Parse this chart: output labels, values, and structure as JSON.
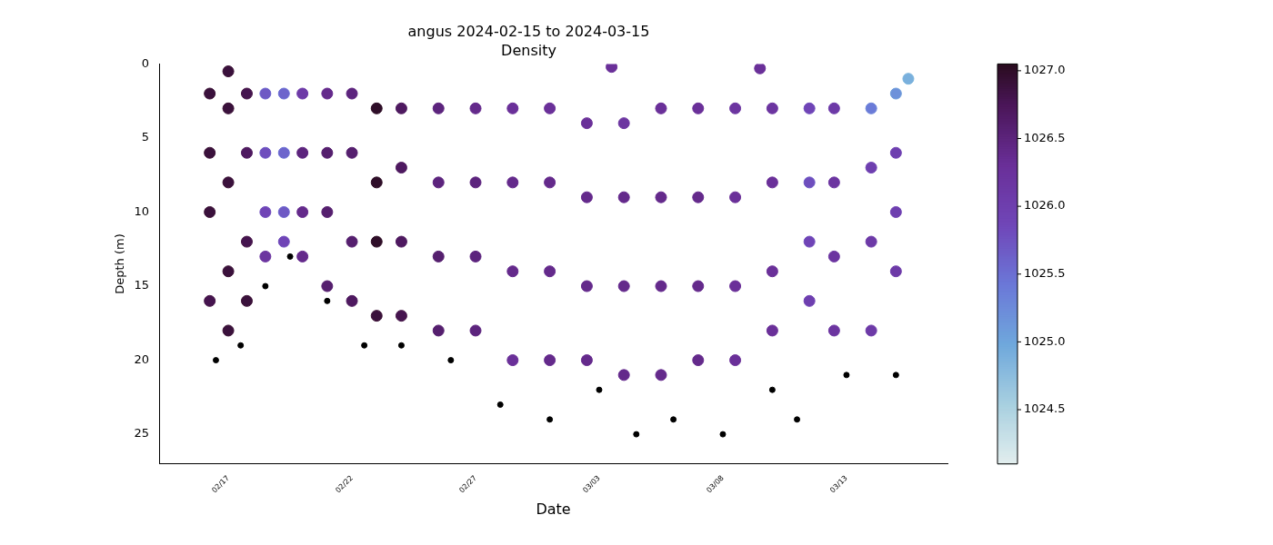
{
  "chart_data": {
    "type": "scatter",
    "title": "angus 2024-02-15 to 2024-03-15",
    "subtitle": "Density",
    "xlabel": "Date",
    "ylabel": "Depth (m)",
    "xlim": [
      "2024-02-14T05:00",
      "2024-03-17T02:00"
    ],
    "xticks": [
      {
        "value": "2024-02-17",
        "label": "02/17"
      },
      {
        "value": "2024-02-22",
        "label": "02/22"
      },
      {
        "value": "2024-02-27",
        "label": "02/27"
      },
      {
        "value": "2024-03-03",
        "label": "03/03"
      },
      {
        "value": "2024-03-08",
        "label": "03/08"
      },
      {
        "value": "2024-03-13",
        "label": "03/13"
      }
    ],
    "ylim": [
      27,
      0
    ],
    "yticks": [
      0,
      5,
      10,
      15,
      20,
      25
    ],
    "clim": [
      1024.1,
      1027.05
    ],
    "cticks": [
      {
        "value": 1024.5,
        "label": "1024.5"
      },
      {
        "value": 1025,
        "label": "1025.0"
      },
      {
        "value": 1025.5,
        "label": "1025.5"
      },
      {
        "value": 1026,
        "label": "1026.0"
      },
      {
        "value": 1026.5,
        "label": "1026.5"
      },
      {
        "value": 1027,
        "label": "1027.0"
      }
    ],
    "grid": false,
    "legend": false,
    "marker": "circle",
    "series": [
      {
        "color": "#000000",
        "x": [
          "2024-02-16T12:00",
          "2024-02-17T12:00",
          "2024-02-18T12:00",
          "2024-02-19T12:00",
          "2024-02-21T00:00",
          "2024-02-22T12:00",
          "2024-02-24T00:00",
          "2024-02-26T00:00",
          "2024-02-28T00:00",
          "2024-03-01T00:00",
          "2024-03-03T00:00",
          "2024-03-04T12:00",
          "2024-03-06T00:00",
          "2024-03-08T00:00",
          "2024-03-10T00:00",
          "2024-03-11T00:00",
          "2024-03-13T00:00",
          "2024-03-15T00:00"
        ],
        "values": [
          20,
          19,
          15,
          13,
          16,
          19,
          19,
          20,
          23,
          24,
          22,
          25,
          24,
          25,
          22,
          24,
          21,
          21
        ]
      },
      {
        "x": [
          "2024-02-16T06:00",
          "2024-02-16T06:00",
          "2024-02-16T06:00",
          "2024-02-16T06:00",
          "2024-02-17T00:00",
          "2024-02-17T00:00",
          "2024-02-17T00:00",
          "2024-02-17T00:00",
          "2024-02-17T18:00",
          "2024-02-17T18:00",
          "2024-02-17T18:00",
          "2024-02-17T18:00",
          "2024-02-18T12:00",
          "2024-02-18T12:00",
          "2024-02-18T12:00",
          "2024-02-18T12:00",
          "2024-02-19T06:00",
          "2024-02-19T06:00",
          "2024-02-19T06:00",
          "2024-02-19T06:00",
          "2024-02-20T00:00",
          "2024-02-20T00:00",
          "2024-02-20T00:00",
          "2024-02-20T00:00",
          "2024-02-21T00:00",
          "2024-02-21T00:00",
          "2024-02-21T00:00",
          "2024-02-21T00:00",
          "2024-02-22T00:00",
          "2024-02-22T00:00",
          "2024-02-22T00:00",
          "2024-02-22T00:00",
          "2024-02-23T00:00",
          "2024-02-23T00:00",
          "2024-02-23T00:00",
          "2024-02-23T00:00",
          "2024-02-24T00:00",
          "2024-02-24T00:00",
          "2024-02-24T00:00",
          "2024-02-24T00:00",
          "2024-02-25T12:00",
          "2024-02-25T12:00",
          "2024-02-25T12:00",
          "2024-02-25T12:00",
          "2024-02-27T00:00",
          "2024-02-27T00:00",
          "2024-02-27T00:00",
          "2024-02-27T00:00",
          "2024-02-28T12:00",
          "2024-02-28T12:00",
          "2024-02-28T12:00",
          "2024-02-28T12:00",
          "2024-03-01T00:00",
          "2024-03-01T00:00",
          "2024-03-01T00:00",
          "2024-03-01T00:00",
          "2024-03-02T12:00",
          "2024-03-02T12:00",
          "2024-03-02T12:00",
          "2024-03-02T12:00",
          "2024-03-04T00:00",
          "2024-03-04T00:00",
          "2024-03-04T00:00",
          "2024-03-04T00:00",
          "2024-03-05T12:00",
          "2024-03-05T12:00",
          "2024-03-05T12:00",
          "2024-03-05T12:00",
          "2024-03-07T00:00",
          "2024-03-07T00:00",
          "2024-03-07T00:00",
          "2024-03-07T00:00",
          "2024-03-08T12:00",
          "2024-03-08T12:00",
          "2024-03-08T12:00",
          "2024-03-08T12:00",
          "2024-03-10T00:00",
          "2024-03-10T00:00",
          "2024-03-10T00:00",
          "2024-03-10T00:00",
          "2024-03-11T12:00",
          "2024-03-11T12:00",
          "2024-03-11T12:00",
          "2024-03-11T12:00",
          "2024-03-12T12:00",
          "2024-03-12T12:00",
          "2024-03-12T12:00",
          "2024-03-12T12:00",
          "2024-03-14T00:00",
          "2024-03-14T00:00",
          "2024-03-14T00:00",
          "2024-03-14T00:00",
          "2024-03-15T00:00",
          "2024-03-15T00:00",
          "2024-03-15T00:00",
          "2024-03-15T00:00",
          "2024-02-17T00:00",
          "2024-03-03T12:00",
          "2024-03-09T12:00",
          "2024-03-15T12:00"
        ],
        "values": [
          2,
          6,
          10,
          16,
          3,
          8,
          14,
          18,
          2,
          6,
          12,
          16,
          2,
          6,
          10,
          13,
          2,
          6,
          10,
          12,
          2,
          6,
          10,
          13,
          2,
          6,
          10,
          15,
          2,
          6,
          12,
          16,
          3,
          8,
          12,
          17,
          3,
          7,
          12,
          17,
          3,
          8,
          13,
          18,
          3,
          8,
          13,
          18,
          3,
          8,
          14,
          20,
          3,
          8,
          14,
          20,
          4,
          9,
          15,
          20,
          4,
          9,
          15,
          21,
          3,
          9,
          15,
          21,
          3,
          9,
          15,
          20,
          3,
          9,
          15,
          20,
          3,
          8,
          14,
          18,
          3,
          8,
          12,
          16,
          3,
          8,
          13,
          18,
          3,
          7,
          12,
          18,
          2,
          6,
          10,
          14,
          0.5,
          0.2,
          0.3,
          1
        ],
        "cvalues": [
          1026.9,
          1026.9,
          1026.9,
          1026.8,
          1026.9,
          1026.9,
          1026.9,
          1026.9,
          1026.8,
          1026.7,
          1026.8,
          1026.9,
          1025.7,
          1025.8,
          1025.9,
          1026.2,
          1025.6,
          1025.6,
          1025.7,
          1025.9,
          1026.1,
          1026.5,
          1026.4,
          1026.4,
          1026.4,
          1026.6,
          1026.6,
          1026.6,
          1026.5,
          1026.6,
          1026.6,
          1026.7,
          1027.0,
          1027.0,
          1027.0,
          1026.9,
          1026.7,
          1026.7,
          1026.7,
          1026.8,
          1026.5,
          1026.5,
          1026.6,
          1026.6,
          1026.4,
          1026.5,
          1026.5,
          1026.5,
          1026.3,
          1026.4,
          1026.4,
          1026.3,
          1026.3,
          1026.4,
          1026.4,
          1026.4,
          1026.3,
          1026.4,
          1026.4,
          1026.4,
          1026.2,
          1026.4,
          1026.4,
          1026.4,
          1026.3,
          1026.4,
          1026.4,
          1026.4,
          1026.3,
          1026.4,
          1026.4,
          1026.4,
          1026.2,
          1026.3,
          1026.3,
          1026.3,
          1026.2,
          1026.3,
          1026.3,
          1026.3,
          1025.9,
          1025.8,
          1025.9,
          1026.0,
          1026.1,
          1026.2,
          1026.2,
          1026.2,
          1025.4,
          1026.0,
          1026.1,
          1026.1,
          1025.2,
          1026.0,
          1026.0,
          1026.1,
          1026.9,
          1026.3,
          1026.3,
          1024.9
        ],
        "colors": [
          "#3b1035",
          "#3b1035",
          "#3b1035",
          "#451446",
          "#3b1035",
          "#3b1035",
          "#3b1035",
          "#3b1035",
          "#451446",
          "#4e1a5e",
          "#451446",
          "#3b1035",
          "#6c64ce",
          "#6d58c6",
          "#6f4cbd",
          "#6c35a2",
          "#6b6fd5",
          "#6b6fd5",
          "#6c64ce",
          "#6f4cbd",
          "#6e3bab",
          "#5e2480",
          "#65298e",
          "#65298e",
          "#65298e",
          "#561f70",
          "#561f70",
          "#561f70",
          "#5e2480",
          "#561f70",
          "#561f70",
          "#4e1a5e",
          "#2e0d25",
          "#2e0d25",
          "#2e0d25",
          "#3b1035",
          "#4e1a5e",
          "#4e1a5e",
          "#4e1a5e",
          "#451446",
          "#5e2480",
          "#5e2480",
          "#561f70",
          "#561f70",
          "#65298e",
          "#5e2480",
          "#5e2480",
          "#5e2480",
          "#6a2f98",
          "#65298e",
          "#65298e",
          "#6a2f98",
          "#6a2f98",
          "#65298e",
          "#65298e",
          "#65298e",
          "#6a2f98",
          "#65298e",
          "#65298e",
          "#65298e",
          "#6c35a2",
          "#65298e",
          "#65298e",
          "#65298e",
          "#6a2f98",
          "#65298e",
          "#65298e",
          "#65298e",
          "#6a2f98",
          "#65298e",
          "#65298e",
          "#65298e",
          "#6c35a2",
          "#6a2f98",
          "#6a2f98",
          "#6a2f98",
          "#6c35a2",
          "#6a2f98",
          "#6a2f98",
          "#6a2f98",
          "#6f4cbd",
          "#6d58c6",
          "#6f4cbd",
          "#7042b5",
          "#6e3bab",
          "#6c35a2",
          "#6c35a2",
          "#6c35a2",
          "#6d85d9",
          "#7042b5",
          "#6e3bab",
          "#6e3bab",
          "#6d9ddb",
          "#7042b5",
          "#7042b5",
          "#6e3bab",
          "#3b1035",
          "#6a2f98",
          "#6a2f98",
          "#7bb5dd"
        ]
      }
    ]
  }
}
